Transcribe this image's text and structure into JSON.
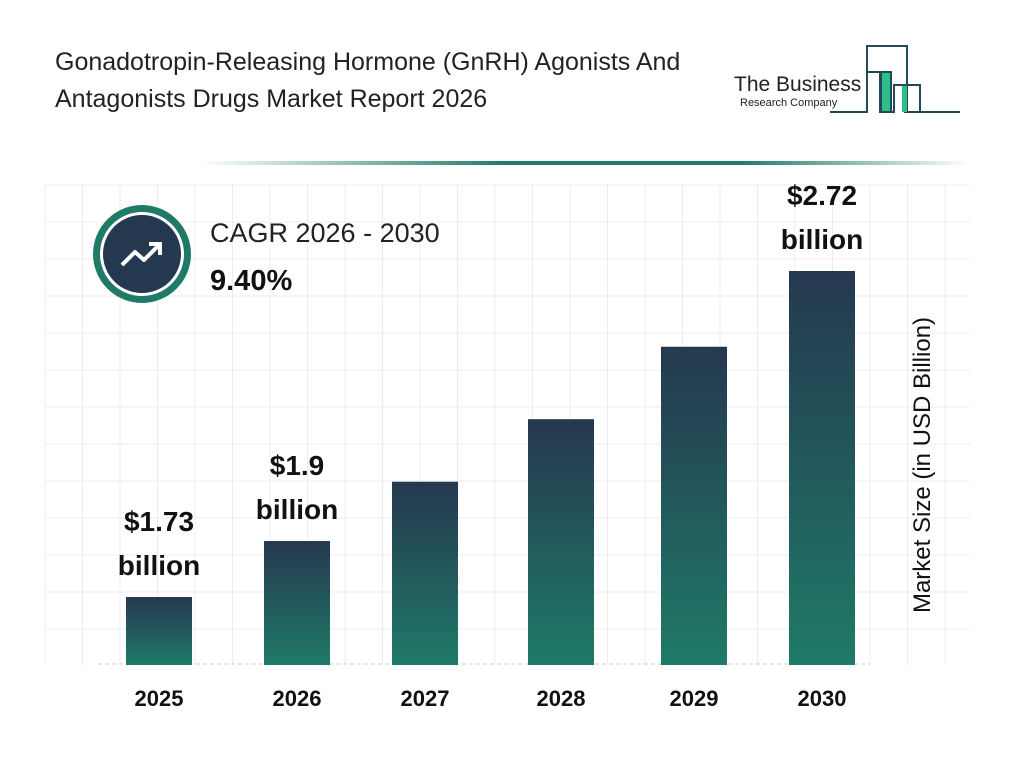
{
  "title": "Gonadotropin-Releasing Hormone (GnRH) Agonists And Antagonists Drugs Market Report 2026",
  "logo": {
    "line1": "The Business",
    "line2": "Research Company"
  },
  "cagr": {
    "label": "CAGR 2026 - 2030",
    "value": "9.40%",
    "icon": "trend-up-arrow-icon"
  },
  "colors": {
    "bar_top": "#25384f",
    "bar_bottom": "#1f7a68",
    "accent": "#1f7a68"
  },
  "chart_data": {
    "type": "bar",
    "categories": [
      "2025",
      "2026",
      "2027",
      "2028",
      "2029",
      "2030"
    ],
    "values": [
      1.73,
      1.9,
      2.08,
      2.27,
      2.49,
      2.72
    ],
    "data_labels": [
      "$1.73 billion",
      "$1.9 billion",
      "",
      "",
      "",
      "$2.72 billion"
    ],
    "ylabel": "Market Size (in USD Billion)",
    "grid": true
  }
}
